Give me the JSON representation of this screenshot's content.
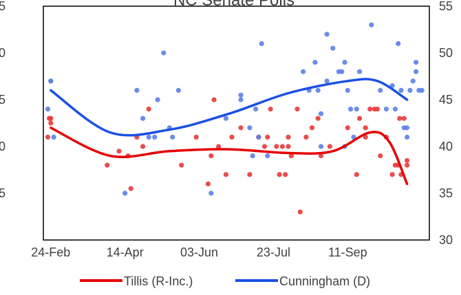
{
  "chart_data": {
    "type": "scatter",
    "title": "NC Senate Polls",
    "x_tick_labels": [
      "24-Feb",
      "14-Apr",
      "03-Jun",
      "23-Jul",
      "11-Sep"
    ],
    "x_tick_days": [
      0,
      50,
      100,
      150,
      200
    ],
    "left_tick_labels": [
      "5",
      "0",
      "5",
      "0",
      "5"
    ],
    "right_tick_labels": [
      "30",
      "35",
      "40",
      "45",
      "50",
      "55"
    ],
    "ylim": [
      30,
      55
    ],
    "grid": false,
    "legend_position": "bottom",
    "series": [
      {
        "name": "Tillis (R-Inc.)",
        "color": "#e83838",
        "trend_color": "#e60000",
        "points": [
          [
            -2,
            41
          ],
          [
            -1,
            43
          ],
          [
            0,
            42.5
          ],
          [
            0,
            43
          ],
          [
            38,
            38
          ],
          [
            46,
            39.5
          ],
          [
            52,
            39
          ],
          [
            54,
            35.5
          ],
          [
            58,
            41
          ],
          [
            62,
            40
          ],
          [
            66,
            44
          ],
          [
            88,
            38
          ],
          [
            98,
            41
          ],
          [
            106,
            36
          ],
          [
            108,
            39
          ],
          [
            110,
            45
          ],
          [
            113,
            40
          ],
          [
            118,
            37
          ],
          [
            122,
            41
          ],
          [
            128,
            42
          ],
          [
            134,
            37
          ],
          [
            140,
            41
          ],
          [
            144,
            40
          ],
          [
            146,
            41
          ],
          [
            148,
            44
          ],
          [
            152,
            40
          ],
          [
            154,
            37
          ],
          [
            156,
            40
          ],
          [
            158,
            37
          ],
          [
            160,
            40
          ],
          [
            160,
            41
          ],
          [
            162,
            39
          ],
          [
            166,
            44
          ],
          [
            168,
            33
          ],
          [
            172,
            41
          ],
          [
            176,
            42
          ],
          [
            180,
            43
          ],
          [
            182,
            39
          ],
          [
            188,
            40
          ],
          [
            200,
            42
          ],
          [
            206,
            37
          ],
          [
            208,
            43
          ],
          [
            212,
            42
          ],
          [
            212,
            41
          ],
          [
            215,
            44
          ],
          [
            218,
            44
          ],
          [
            220,
            44
          ],
          [
            222,
            39
          ],
          [
            226,
            41
          ],
          [
            230,
            37
          ],
          [
            232,
            38
          ],
          [
            234,
            38
          ],
          [
            235,
            43
          ],
          [
            236,
            37
          ],
          [
            238,
            43
          ],
          [
            240,
            38
          ],
          [
            240,
            38.5
          ]
        ],
        "trend": [
          [
            0,
            42
          ],
          [
            40,
            39
          ],
          [
            80,
            39.5
          ],
          [
            120,
            39.7
          ],
          [
            160,
            39.3
          ],
          [
            190,
            39.5
          ],
          [
            215,
            41.5
          ],
          [
            228,
            40.5
          ],
          [
            240,
            36
          ]
        ]
      },
      {
        "name": "Cunningham (D)",
        "color": "#5b7fe8",
        "trend_color": "#1a4fe6",
        "points": [
          [
            -2,
            44
          ],
          [
            0,
            47
          ],
          [
            0,
            47
          ],
          [
            2,
            41
          ],
          [
            50,
            35
          ],
          [
            58,
            46
          ],
          [
            62,
            43
          ],
          [
            66,
            41
          ],
          [
            70,
            41
          ],
          [
            72,
            45
          ],
          [
            76,
            50
          ],
          [
            80,
            42
          ],
          [
            82,
            41
          ],
          [
            86,
            46
          ],
          [
            108,
            35
          ],
          [
            118,
            43
          ],
          [
            128,
            45
          ],
          [
            128,
            45.5
          ],
          [
            134,
            42
          ],
          [
            136,
            39
          ],
          [
            138,
            44
          ],
          [
            140,
            41
          ],
          [
            142,
            51
          ],
          [
            146,
            39
          ],
          [
            170,
            48
          ],
          [
            174,
            46
          ],
          [
            178,
            49
          ],
          [
            180,
            46
          ],
          [
            182,
            40
          ],
          [
            182,
            43.5
          ],
          [
            186,
            47
          ],
          [
            186,
            52
          ],
          [
            190,
            50.5
          ],
          [
            194,
            48
          ],
          [
            196,
            48
          ],
          [
            198,
            49
          ],
          [
            198,
            40
          ],
          [
            200,
            46
          ],
          [
            202,
            44
          ],
          [
            204,
            41
          ],
          [
            206,
            44
          ],
          [
            208,
            48
          ],
          [
            216,
            53
          ],
          [
            222,
            46
          ],
          [
            226,
            44
          ],
          [
            230,
            46.5
          ],
          [
            232,
            44
          ],
          [
            234,
            51
          ],
          [
            236,
            46
          ],
          [
            238,
            42
          ],
          [
            240,
            41
          ],
          [
            240,
            42
          ],
          [
            242,
            46
          ],
          [
            244,
            47
          ],
          [
            246,
            48
          ],
          [
            246,
            49
          ],
          [
            248,
            46
          ],
          [
            250,
            46
          ]
        ],
        "trend": [
          [
            0,
            46
          ],
          [
            40,
            41.5
          ],
          [
            80,
            41.8
          ],
          [
            120,
            43.5
          ],
          [
            160,
            45.7
          ],
          [
            200,
            47
          ],
          [
            220,
            47
          ],
          [
            240,
            45
          ]
        ]
      }
    ]
  }
}
